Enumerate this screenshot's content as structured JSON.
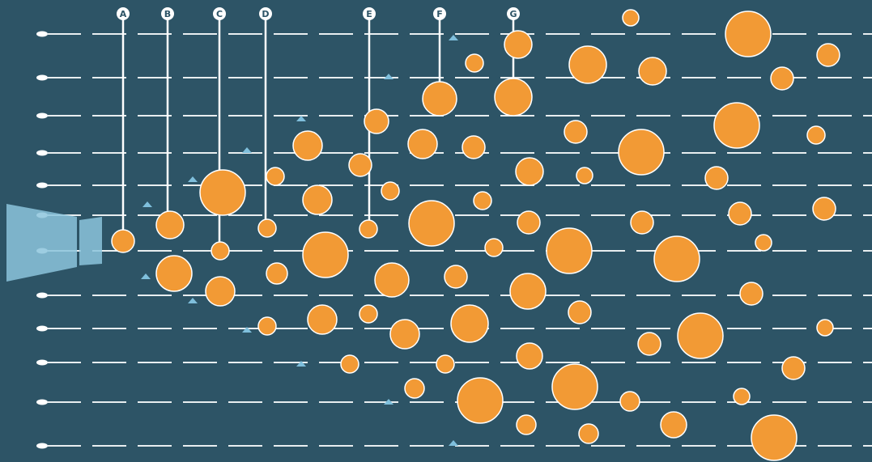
{
  "markers": [
    {
      "label": "A"
    },
    {
      "label": "B"
    },
    {
      "label": "C"
    },
    {
      "label": "D"
    },
    {
      "label": "E"
    },
    {
      "label": "F"
    },
    {
      "label": "G"
    }
  ]
}
